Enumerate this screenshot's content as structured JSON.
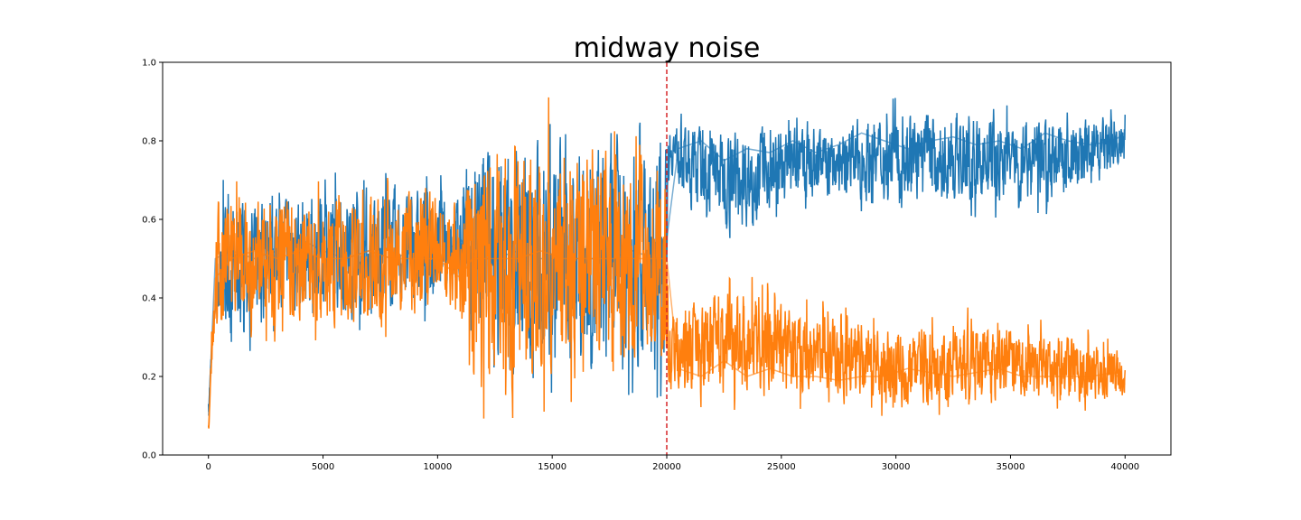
{
  "chart_data": {
    "type": "line",
    "title": "midway noise",
    "xlabel": "",
    "ylabel": "",
    "xlim": [
      -2000,
      42000
    ],
    "ylim": [
      0.0,
      1.0
    ],
    "xticks": [
      0,
      5000,
      10000,
      15000,
      20000,
      25000,
      30000,
      35000,
      40000
    ],
    "yticks": [
      0.0,
      0.2,
      0.4,
      0.6,
      0.8,
      1.0
    ],
    "xtick_labels": [
      "0",
      "5000",
      "10000",
      "15000",
      "20000",
      "25000",
      "30000",
      "35000",
      "40000"
    ],
    "ytick_labels": [
      "0.0",
      "0.2",
      "0.4",
      "0.6",
      "0.8",
      "1.0"
    ],
    "grid": false,
    "legend": "none",
    "vline": {
      "x": 20000,
      "color": "#d62728",
      "style": "dashed"
    },
    "series": [
      {
        "color": "#1f77b4",
        "x": [
          0,
          300,
          1000,
          2000,
          3000,
          4000,
          5000,
          6000,
          7000,
          8000,
          9000,
          10000,
          11000,
          11500,
          12500,
          13500,
          14500,
          15500,
          16500,
          17500,
          18500,
          19500,
          20000,
          20500,
          21500,
          22500,
          23500,
          24500,
          25500,
          26500,
          27500,
          28500,
          29500,
          30500,
          31500,
          32500,
          33500,
          34500,
          35500,
          36500,
          37500,
          38500,
          39500,
          40000
        ],
        "y": [
          0.1,
          0.5,
          0.52,
          0.5,
          0.52,
          0.55,
          0.52,
          0.5,
          0.52,
          0.5,
          0.52,
          0.5,
          0.55,
          0.5,
          0.5,
          0.52,
          0.5,
          0.5,
          0.5,
          0.5,
          0.52,
          0.5,
          0.55,
          0.78,
          0.8,
          0.75,
          0.78,
          0.77,
          0.8,
          0.77,
          0.79,
          0.82,
          0.8,
          0.78,
          0.8,
          0.81,
          0.79,
          0.8,
          0.78,
          0.82,
          0.8,
          0.79,
          0.8,
          0.82
        ],
        "band_x": [
          0,
          300,
          500,
          3000,
          7000,
          10000,
          11000,
          11500,
          13000,
          16000,
          18000,
          19900,
          20100,
          21000,
          23000,
          25000,
          28000,
          30000,
          33000,
          36000,
          38000,
          40000
        ],
        "band_low": [
          0.08,
          0.35,
          0.22,
          0.3,
          0.3,
          0.33,
          0.38,
          0.12,
          0.1,
          0.09,
          0.1,
          0.12,
          0.7,
          0.6,
          0.52,
          0.6,
          0.62,
          0.6,
          0.6,
          0.6,
          0.62,
          0.7
        ],
        "band_high": [
          0.18,
          0.45,
          0.7,
          0.74,
          0.74,
          0.72,
          0.72,
          0.9,
          0.9,
          0.92,
          0.9,
          0.88,
          0.88,
          0.87,
          0.88,
          0.87,
          0.88,
          0.91,
          0.9,
          0.9,
          0.9,
          0.88
        ]
      },
      {
        "color": "#ff7f0e",
        "x": [
          0,
          300,
          1000,
          2000,
          3000,
          4000,
          5000,
          6000,
          7000,
          8000,
          9000,
          10000,
          11000,
          11500,
          12500,
          13500,
          14500,
          15500,
          16500,
          17500,
          18500,
          19500,
          20000,
          20500,
          21500,
          22500,
          23500,
          24500,
          25500,
          26500,
          27500,
          28500,
          29500,
          30500,
          31500,
          32500,
          33500,
          34500,
          35500,
          36500,
          37500,
          38500,
          39500,
          40000
        ],
        "y": [
          0.07,
          0.45,
          0.5,
          0.52,
          0.5,
          0.52,
          0.5,
          0.5,
          0.52,
          0.5,
          0.5,
          0.5,
          0.45,
          0.5,
          0.5,
          0.5,
          0.52,
          0.5,
          0.5,
          0.5,
          0.5,
          0.5,
          0.5,
          0.22,
          0.2,
          0.24,
          0.2,
          0.22,
          0.2,
          0.2,
          0.19,
          0.2,
          0.2,
          0.22,
          0.21,
          0.2,
          0.21,
          0.22,
          0.2,
          0.2,
          0.2,
          0.2,
          0.21,
          0.18
        ],
        "band_x": [
          0,
          300,
          500,
          3000,
          7000,
          10000,
          11000,
          11500,
          13000,
          16000,
          18000,
          19900,
          20100,
          21000,
          23000,
          25000,
          28000,
          30000,
          33000,
          36000,
          38000,
          40000
        ],
        "band_low": [
          0.05,
          0.25,
          0.28,
          0.27,
          0.28,
          0.3,
          0.3,
          0.09,
          0.09,
          0.09,
          0.09,
          0.12,
          0.13,
          0.1,
          0.1,
          0.1,
          0.1,
          0.09,
          0.09,
          0.1,
          0.1,
          0.12
        ],
        "band_high": [
          0.1,
          0.6,
          0.75,
          0.7,
          0.72,
          0.72,
          0.68,
          0.88,
          0.9,
          0.92,
          0.9,
          0.86,
          0.4,
          0.42,
          0.49,
          0.42,
          0.38,
          0.35,
          0.38,
          0.35,
          0.34,
          0.28
        ]
      }
    ]
  }
}
